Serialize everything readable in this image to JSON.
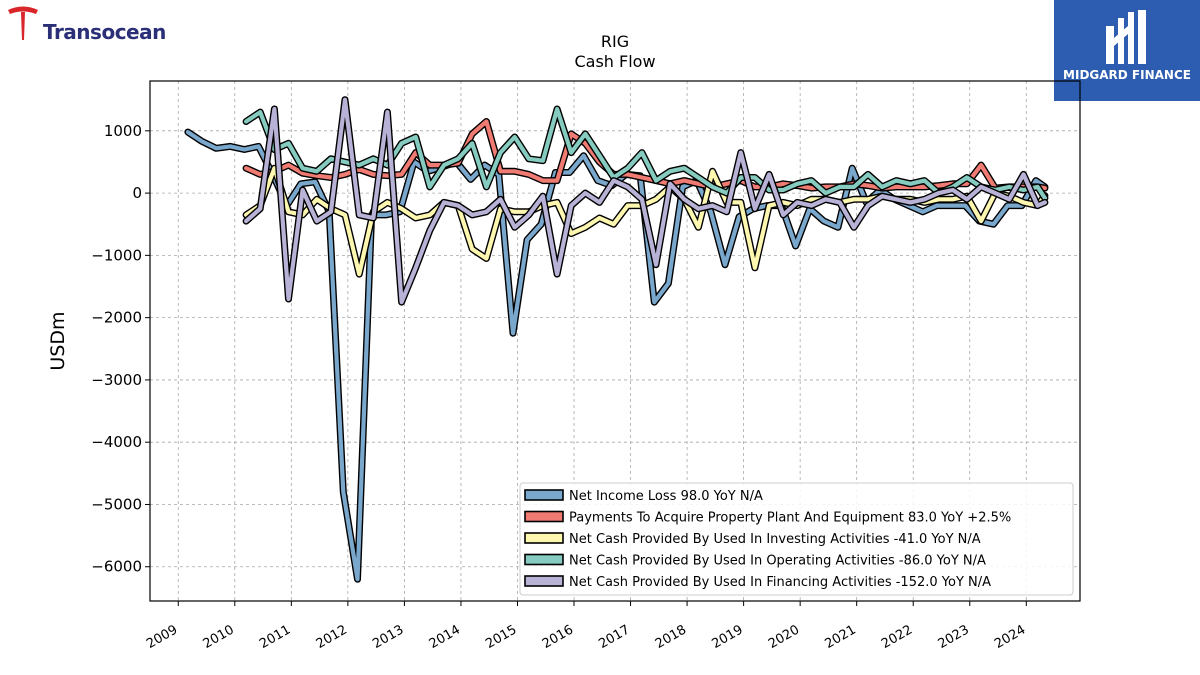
{
  "header": {
    "brand_left": "Transocean",
    "brand_right": "MIDGARD FINANCE"
  },
  "chart_data": {
    "type": "line",
    "title": "RIG",
    "subtitle": "Cash Flow",
    "ylabel": "USDm",
    "xlabel": "",
    "ylim": [
      -6550,
      1800
    ],
    "xlim": [
      2008.5,
      2024.95
    ],
    "yticks": [
      1000,
      0,
      -1000,
      -2000,
      -3000,
      -4000,
      -5000,
      -6000
    ],
    "ytick_labels": [
      "1000",
      "0",
      "−1000",
      "−2000",
      "−3000",
      "−4000",
      "−5000",
      "−6000"
    ],
    "xticks": [
      2009,
      2010,
      2011,
      2012,
      2013,
      2014,
      2015,
      2016,
      2017,
      2018,
      2019,
      2020,
      2021,
      2022,
      2023,
      2024
    ],
    "xtick_labels": [
      "2009",
      "2010",
      "2011",
      "2012",
      "2013",
      "2014",
      "2015",
      "2016",
      "2017",
      "2018",
      "2019",
      "2020",
      "2021",
      "2022",
      "2023",
      "2024"
    ],
    "grid": true,
    "legend_position": "lower-right",
    "series": [
      {
        "legend": "Net Income Loss  98.0 YoY N/A",
        "color": "#7aa7cc",
        "x": [
          2009.17,
          2009.42,
          2009.67,
          2009.92,
          2010.17,
          2010.42,
          2010.67,
          2010.92,
          2011.17,
          2011.42,
          2011.67,
          2011.92,
          2012.17,
          2012.42,
          2012.67,
          2012.92,
          2013.17,
          2013.42,
          2013.67,
          2013.92,
          2014.17,
          2014.42,
          2014.67,
          2014.92,
          2015.17,
          2015.42,
          2015.67,
          2015.92,
          2016.17,
          2016.42,
          2016.67,
          2016.92,
          2017.17,
          2017.42,
          2017.67,
          2017.92,
          2018.17,
          2018.42,
          2018.67,
          2018.92,
          2019.17,
          2019.42,
          2019.67,
          2019.92,
          2020.17,
          2020.42,
          2020.67,
          2020.92,
          2021.17,
          2021.42,
          2021.67,
          2021.92,
          2022.17,
          2022.42,
          2022.67,
          2022.92,
          2023.17,
          2023.42,
          2023.67,
          2023.92,
          2024.17,
          2024.33
        ],
        "y": [
          980,
          830,
          720,
          750,
          700,
          750,
          300,
          -200,
          150,
          180,
          -300,
          -4800,
          -6200,
          -350,
          -350,
          -300,
          500,
          350,
          420,
          500,
          220,
          450,
          300,
          -2250,
          -750,
          -500,
          330,
          330,
          600,
          200,
          120,
          300,
          280,
          -1750,
          -1450,
          100,
          200,
          -300,
          -1150,
          -380,
          -250,
          -200,
          -200,
          -850,
          -250,
          -450,
          -550,
          400,
          -150,
          50,
          -100,
          -200,
          -300,
          -200,
          -200,
          -200,
          -450,
          -500,
          -200,
          -200,
          200,
          100
        ]
      },
      {
        "legend": "Payments To Acquire Property Plant And Equipment  83.0 YoY +2.5%",
        "color": "#f07b72",
        "x": [
          2010.2,
          2010.45,
          2010.7,
          2010.95,
          2011.2,
          2011.45,
          2011.7,
          2011.95,
          2012.2,
          2012.45,
          2012.7,
          2012.95,
          2013.2,
          2013.45,
          2013.7,
          2013.95,
          2014.2,
          2014.45,
          2014.7,
          2014.95,
          2015.2,
          2015.45,
          2015.7,
          2015.95,
          2016.2,
          2016.45,
          2016.7,
          2016.95,
          2017.2,
          2017.45,
          2017.7,
          2017.95,
          2018.2,
          2018.45,
          2018.7,
          2018.95,
          2019.2,
          2019.45,
          2019.7,
          2019.95,
          2020.2,
          2020.45,
          2020.7,
          2020.95,
          2021.2,
          2021.45,
          2021.7,
          2021.95,
          2022.2,
          2022.45,
          2022.7,
          2022.95,
          2023.2,
          2023.45,
          2023.7,
          2023.95,
          2024.2,
          2024.33
        ],
        "y": [
          400,
          300,
          350,
          450,
          320,
          280,
          250,
          300,
          380,
          300,
          280,
          300,
          650,
          450,
          450,
          480,
          950,
          1150,
          350,
          350,
          300,
          200,
          200,
          950,
          800,
          500,
          300,
          300,
          250,
          200,
          150,
          200,
          150,
          100,
          150,
          200,
          100,
          100,
          150,
          120,
          80,
          100,
          100,
          150,
          120,
          80,
          100,
          100,
          100,
          120,
          150,
          150,
          450,
          80,
          100,
          100,
          100,
          80
        ]
      },
      {
        "legend": "Net Cash Provided By Used In Investing Activities  -41.0 YoY N/A",
        "color": "#fdf7b0",
        "x": [
          2010.2,
          2010.45,
          2010.7,
          2010.95,
          2011.2,
          2011.45,
          2011.7,
          2011.95,
          2012.2,
          2012.45,
          2012.7,
          2012.95,
          2013.2,
          2013.45,
          2013.7,
          2013.95,
          2014.2,
          2014.45,
          2014.7,
          2014.95,
          2015.2,
          2015.45,
          2015.7,
          2015.95,
          2016.2,
          2016.45,
          2016.7,
          2016.95,
          2017.2,
          2017.45,
          2017.7,
          2017.95,
          2018.2,
          2018.45,
          2018.7,
          2018.95,
          2019.2,
          2019.45,
          2019.7,
          2019.95,
          2020.2,
          2020.45,
          2020.7,
          2020.95,
          2021.2,
          2021.45,
          2021.7,
          2021.95,
          2022.2,
          2022.45,
          2022.7,
          2022.95,
          2023.2,
          2023.45,
          2023.7,
          2023.95,
          2024.2,
          2024.33
        ],
        "y": [
          -350,
          -200,
          400,
          -300,
          -350,
          -100,
          -250,
          -350,
          -1300,
          -300,
          -150,
          -250,
          -400,
          -350,
          -150,
          -200,
          -900,
          -1050,
          -250,
          -300,
          -300,
          -200,
          -150,
          -650,
          -550,
          -400,
          -500,
          -200,
          -200,
          -100,
          100,
          -100,
          -550,
          350,
          -150,
          -150,
          -1200,
          -200,
          -150,
          -200,
          -100,
          -100,
          -150,
          -100,
          -100,
          -50,
          -100,
          -100,
          -150,
          -100,
          -100,
          -50,
          -450,
          0,
          -50,
          -150,
          -200,
          -40
        ]
      },
      {
        "legend": "Net Cash Provided By Used In Operating Activities  -86.0 YoY N/A",
        "color": "#86cbbf",
        "x": [
          2010.2,
          2010.45,
          2010.7,
          2010.95,
          2011.2,
          2011.45,
          2011.7,
          2011.95,
          2012.2,
          2012.45,
          2012.7,
          2012.95,
          2013.2,
          2013.45,
          2013.7,
          2013.95,
          2014.2,
          2014.45,
          2014.7,
          2014.95,
          2015.2,
          2015.45,
          2015.7,
          2015.95,
          2016.2,
          2016.45,
          2016.7,
          2016.95,
          2017.2,
          2017.45,
          2017.7,
          2017.95,
          2018.2,
          2018.45,
          2018.7,
          2018.95,
          2019.2,
          2019.45,
          2019.7,
          2019.95,
          2020.2,
          2020.45,
          2020.7,
          2020.95,
          2021.2,
          2021.45,
          2021.7,
          2021.95,
          2022.2,
          2022.45,
          2022.7,
          2022.95,
          2023.2,
          2023.45,
          2023.7,
          2023.95,
          2024.2,
          2024.33
        ],
        "y": [
          1150,
          1300,
          700,
          800,
          400,
          350,
          550,
          500,
          450,
          550,
          450,
          800,
          900,
          100,
          450,
          550,
          800,
          100,
          650,
          900,
          550,
          520,
          1350,
          650,
          950,
          600,
          250,
          400,
          650,
          200,
          350,
          400,
          250,
          100,
          0,
          250,
          250,
          50,
          50,
          150,
          200,
          0,
          100,
          100,
          300,
          100,
          200,
          150,
          200,
          0,
          100,
          250,
          100,
          50,
          100,
          50,
          100,
          -80
        ]
      },
      {
        "legend": "Net Cash Provided By Used In Financing Activities  -152.0 YoY N/A",
        "color": "#b8b2d6",
        "x": [
          2010.2,
          2010.45,
          2010.7,
          2010.95,
          2011.2,
          2011.45,
          2011.7,
          2011.95,
          2012.2,
          2012.45,
          2012.7,
          2012.95,
          2013.2,
          2013.45,
          2013.7,
          2013.95,
          2014.2,
          2014.45,
          2014.7,
          2014.95,
          2015.2,
          2015.45,
          2015.7,
          2015.95,
          2016.2,
          2016.45,
          2016.7,
          2016.95,
          2017.2,
          2017.45,
          2017.7,
          2017.95,
          2018.2,
          2018.45,
          2018.7,
          2018.95,
          2019.2,
          2019.45,
          2019.7,
          2019.95,
          2020.2,
          2020.45,
          2020.7,
          2020.95,
          2021.2,
          2021.45,
          2021.7,
          2021.95,
          2022.2,
          2022.45,
          2022.7,
          2022.95,
          2023.2,
          2023.45,
          2023.7,
          2023.95,
          2024.2,
          2024.33
        ],
        "y": [
          -450,
          -250,
          1350,
          -1700,
          50,
          -450,
          -300,
          1500,
          -350,
          -400,
          1300,
          -1750,
          -1200,
          -600,
          -150,
          -200,
          -350,
          -300,
          -100,
          -550,
          -350,
          -50,
          -1300,
          -200,
          0,
          -150,
          200,
          100,
          -100,
          -1150,
          150,
          -100,
          -250,
          -200,
          -300,
          650,
          -250,
          300,
          -350,
          -150,
          -200,
          -100,
          -150,
          -550,
          -200,
          -50,
          -100,
          -150,
          -100,
          0,
          50,
          -100,
          100,
          0,
          -100,
          300,
          -200,
          -150
        ]
      }
    ]
  }
}
